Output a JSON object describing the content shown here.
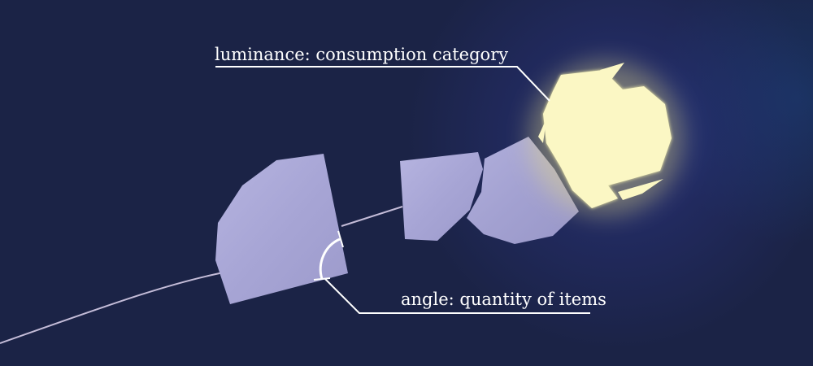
{
  "annotations": {
    "luminance_label": "luminance: consumption category",
    "angle_label": "angle: quantity of items"
  },
  "colors": {
    "background": "#1b2346",
    "shard_fill": "#a9a7d6",
    "glow_fill": "#f7f1a6",
    "annotation_line": "#ffffff",
    "thread": "#b9b0d0"
  }
}
